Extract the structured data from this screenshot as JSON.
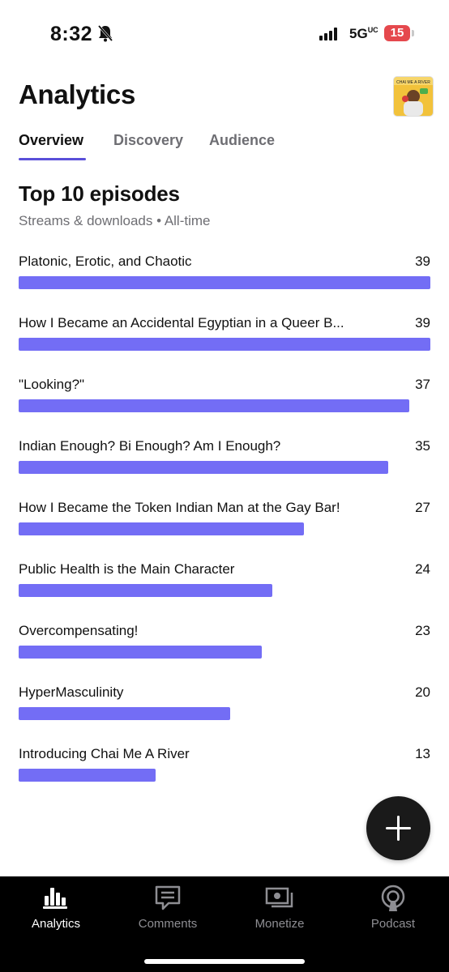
{
  "status_bar": {
    "time": "8:32",
    "network": "5G",
    "network_sup": "UC",
    "battery": "15"
  },
  "header": {
    "title": "Analytics",
    "art_label": "CHAI ME A RIVER"
  },
  "tabs": [
    "Overview",
    "Discovery",
    "Audience"
  ],
  "section": {
    "title": "Top 10 episodes",
    "subtitle": "Streams & downloads • All-time"
  },
  "chart_data": {
    "type": "bar",
    "orientation": "horizontal",
    "title": "Top 10 episodes",
    "subtitle": "Streams & downloads • All-time",
    "categories": [
      "Platonic, Erotic, and Chaotic",
      "How I Became an Accidental Egyptian in a Queer B...",
      "\"Looking?\"",
      "Indian Enough? Bi Enough? Am I Enough?",
      "How I Became the Token Indian Man at the Gay Bar!",
      "Public Health is the Main Character",
      "Overcompensating!",
      "HyperMasculinity",
      "Introducing Chai Me A River"
    ],
    "values": [
      39,
      39,
      37,
      35,
      27,
      24,
      23,
      20,
      13
    ],
    "value_labels": [
      "39",
      "39",
      "37",
      "35",
      "27",
      "24",
      "23",
      "20",
      "13"
    ],
    "bar_color": "#736df5"
  },
  "bottom_nav": [
    "Analytics",
    "Comments",
    "Monetize",
    "Podcast"
  ],
  "colors": {
    "accent": "#5a4fd9",
    "bar": "#736df5",
    "battery": "#e5484d"
  }
}
